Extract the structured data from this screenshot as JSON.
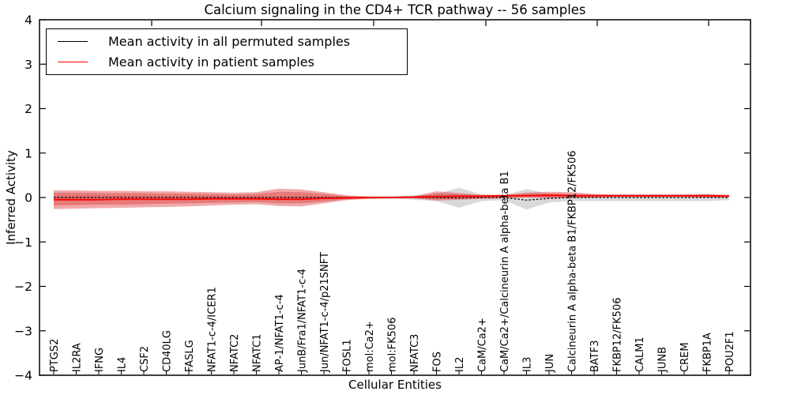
{
  "chart_data": {
    "type": "area",
    "title": "Calcium signaling in the CD4+ TCR pathway -- 56 samples",
    "xlabel": "Cellular Entities",
    "ylabel": "Inferred Activity",
    "ylim": [
      -4,
      4
    ],
    "yticks": [
      -4,
      -3,
      -2,
      -1,
      0,
      1,
      2,
      3,
      4
    ],
    "grid": false,
    "legend_position": "upper left",
    "legend": [
      {
        "label": "Mean activity in all permuted samples",
        "color": "#000000"
      },
      {
        "label": "Mean activity in patient samples",
        "color": "#ff0000"
      }
    ],
    "categories": [
      "PTGS2",
      "IL2RA",
      "IFNG",
      "IL4",
      "CSF2",
      "CD40LG",
      "FASLG",
      "NFAT1-c-4/ICER1",
      "NFATC2",
      "NFATC1",
      "AP-1/NFAT1-c-4",
      "JunB/Fra1/NFAT1-c-4",
      "Jun/NFAT1-c-4/p21SNFT",
      "FOSL1",
      "mol:Ca2+",
      "mol:FK506",
      "NFATC3",
      "FOS",
      "IL2",
      "CaM/Ca2+",
      "CaM/Ca2+/Calcineurin A alpha-beta B1",
      "IL3",
      "JUN",
      "Calcineurin A alpha-beta B1/FKBP12/FK506",
      "BATF3",
      "FKBP12/FK506",
      "CALM1",
      "JUNB",
      "CREM",
      "FKBP1A",
      "POU2F1"
    ],
    "series": [
      {
        "name": "permuted-mean",
        "label": "Mean activity in all permuted samples",
        "color": "#000000",
        "style": "dashed",
        "width": 1.3,
        "values": [
          0,
          0,
          0,
          0,
          0,
          0,
          0,
          0,
          0,
          0,
          0,
          0,
          0,
          0,
          0,
          0,
          0,
          0,
          -0.01,
          0,
          0,
          -0.06,
          -0.02,
          0,
          0,
          0,
          0,
          0,
          0,
          0,
          0
        ]
      },
      {
        "name": "patient-mean",
        "label": "Mean activity in patient samples",
        "color": "#ff0000",
        "style": "solid",
        "width": 1.8,
        "values": [
          -0.05,
          -0.05,
          -0.05,
          -0.04,
          -0.04,
          -0.04,
          -0.04,
          -0.03,
          -0.03,
          -0.03,
          -0.04,
          -0.04,
          -0.02,
          -0.01,
          0,
          0,
          0.01,
          0.02,
          0.03,
          0.03,
          0.04,
          0.04,
          0.05,
          0.04,
          0.04,
          0.04,
          0.04,
          0.04,
          0.04,
          0.04,
          0.03
        ]
      }
    ],
    "bands": [
      {
        "name": "permuted-range",
        "color": "#aaaaaa",
        "opacity": 0.45,
        "upper": [
          0.05,
          0.05,
          0.05,
          0.04,
          0.04,
          0.04,
          0.04,
          0.04,
          0.03,
          0.03,
          0.03,
          0.03,
          0.03,
          0.03,
          0.03,
          0.03,
          0.05,
          0.08,
          0.22,
          0.07,
          0.05,
          0.19,
          0.08,
          0.07,
          0.07,
          0.07,
          0.07,
          0.07,
          0.07,
          0.07,
          0.05
        ],
        "lower": [
          -0.06,
          -0.06,
          -0.05,
          -0.05,
          -0.05,
          -0.05,
          -0.04,
          -0.04,
          -0.04,
          -0.04,
          -0.04,
          -0.04,
          -0.03,
          -0.03,
          -0.03,
          -0.03,
          -0.05,
          -0.08,
          -0.23,
          -0.08,
          -0.06,
          -0.27,
          -0.11,
          -0.08,
          -0.08,
          -0.08,
          -0.08,
          -0.08,
          -0.08,
          -0.08,
          -0.06
        ]
      },
      {
        "name": "patient-range-outer",
        "color": "#dd4040",
        "opacity": 0.45,
        "upper": [
          0.16,
          0.16,
          0.15,
          0.15,
          0.14,
          0.14,
          0.13,
          0.12,
          0.11,
          0.12,
          0.2,
          0.18,
          0.12,
          0.05,
          0.02,
          0.02,
          0.03,
          0.14,
          0.1,
          0.06,
          0.06,
          0.11,
          0.13,
          0.12,
          0.08,
          0.07,
          0.07,
          0.07,
          0.07,
          0.08,
          0.06
        ],
        "lower": [
          -0.26,
          -0.25,
          -0.24,
          -0.23,
          -0.22,
          -0.21,
          -0.2,
          -0.18,
          -0.16,
          -0.15,
          -0.19,
          -0.2,
          -0.13,
          -0.06,
          -0.03,
          -0.02,
          -0.02,
          -0.07,
          -0.05,
          -0.03,
          -0.02,
          0.0,
          -0.01,
          -0.01,
          0.0,
          0.01,
          0.01,
          0.01,
          0.01,
          0.0,
          0.01
        ]
      },
      {
        "name": "patient-range-inner",
        "color": "#dd4040",
        "opacity": 0.45,
        "upper": [
          0.11,
          0.11,
          0.1,
          0.1,
          0.1,
          0.09,
          0.09,
          0.08,
          0.07,
          0.08,
          0.13,
          0.12,
          0.08,
          0.03,
          0.01,
          0.01,
          0.02,
          0.09,
          0.07,
          0.04,
          0.05,
          0.08,
          0.09,
          0.08,
          0.06,
          0.05,
          0.05,
          0.05,
          0.05,
          0.06,
          0.04
        ],
        "lower": [
          -0.18,
          -0.17,
          -0.16,
          -0.16,
          -0.15,
          -0.14,
          -0.13,
          -0.12,
          -0.11,
          -0.1,
          -0.13,
          -0.13,
          -0.09,
          -0.04,
          -0.02,
          -0.01,
          -0.01,
          -0.04,
          -0.03,
          -0.02,
          -0.01,
          0.01,
          0.0,
          0.0,
          0.01,
          0.02,
          0.02,
          0.02,
          0.02,
          0.01,
          0.02
        ]
      }
    ]
  }
}
